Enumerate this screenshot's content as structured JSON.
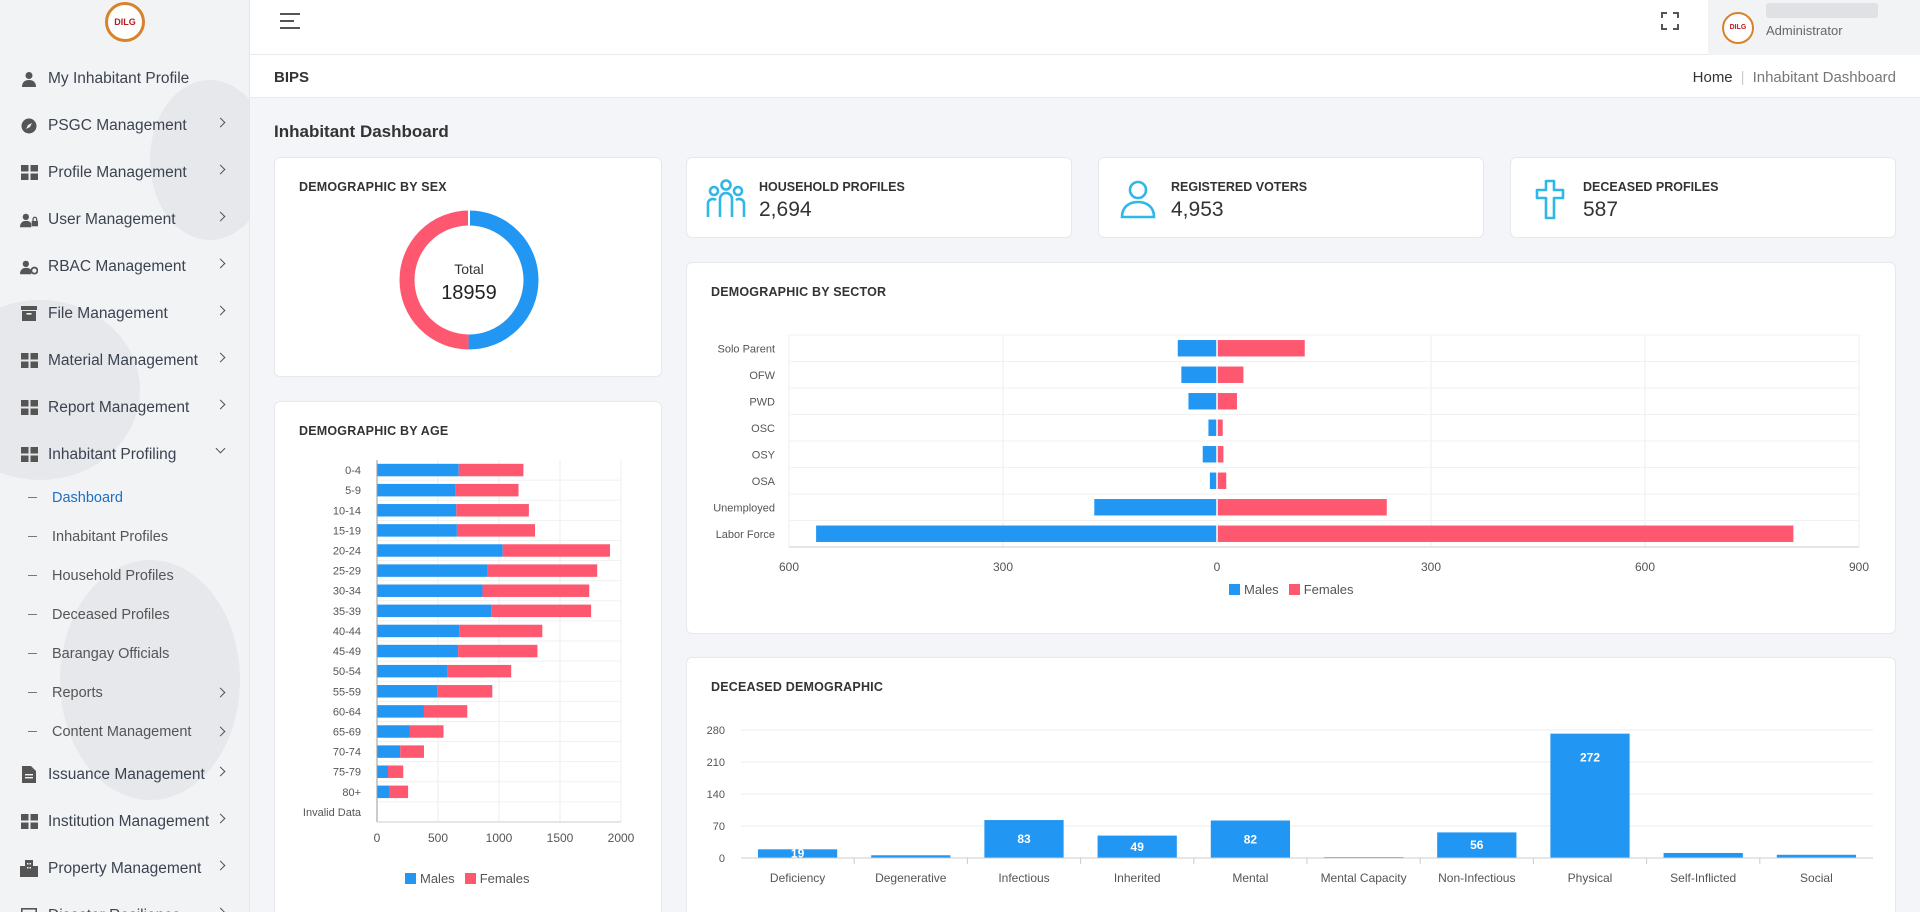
{
  "sidebar": {
    "logo_text": "DILG",
    "items": [
      {
        "label": "My Inhabitant Profile",
        "icon": "user-icon"
      },
      {
        "label": "PSGC Management",
        "icon": "compass-icon"
      },
      {
        "label": "Profile Management",
        "icon": "grid-icon"
      },
      {
        "label": "User Management",
        "icon": "user-lock-icon"
      },
      {
        "label": "RBAC Management",
        "icon": "user-gear-icon"
      },
      {
        "label": "File Management",
        "icon": "archive-icon"
      },
      {
        "label": "Material Management",
        "icon": "grid-icon"
      },
      {
        "label": "Report Management",
        "icon": "grid-icon"
      },
      {
        "label": "Inhabitant Profiling",
        "icon": "grid-icon"
      }
    ],
    "sub_items": [
      {
        "label": "Dashboard"
      },
      {
        "label": "Inhabitant Profiles"
      },
      {
        "label": "Household Profiles"
      },
      {
        "label": "Deceased Profiles"
      },
      {
        "label": "Barangay Officials"
      },
      {
        "label": "Reports"
      },
      {
        "label": "Content Management"
      }
    ],
    "items_after": [
      {
        "label": "Issuance Management",
        "icon": "document-icon"
      },
      {
        "label": "Institution Management",
        "icon": "grid-icon"
      },
      {
        "label": "Property Management",
        "icon": "building-icon"
      },
      {
        "label": "Disaster Resilience",
        "icon": "plus-box-icon"
      }
    ]
  },
  "header": {
    "user_role": "Administrator",
    "avatar_text": "DILG"
  },
  "breadcrumb": {
    "brand": "BIPS",
    "home": "Home",
    "current": "Inhabitant Dashboard"
  },
  "page_title": "Inhabitant Dashboard",
  "stats": {
    "household": {
      "label": "HOUSEHOLD PROFILES",
      "value": "2,694"
    },
    "voters": {
      "label": "REGISTERED VOTERS",
      "value": "4,953"
    },
    "deceased": {
      "label": "DECEASED PROFILES",
      "value": "587"
    }
  },
  "colors": {
    "males": "#2196f3",
    "females": "#fe5870",
    "accent": "#1e6fc4"
  },
  "cards": {
    "sex_title": "DEMOGRAPHIC BY SEX",
    "age_title": "DEMOGRAPHIC BY AGE",
    "sector_title": "DEMOGRAPHIC BY SECTOR",
    "deceased_title": "DECEASED DEMOGRAPHIC"
  },
  "legend": {
    "males": "Males",
    "females": "Females"
  },
  "chart_data": [
    {
      "type": "pie",
      "title": "DEMOGRAPHIC BY SEX",
      "center_label": "Total",
      "center_value": "18959",
      "total": 18959,
      "slices": [
        {
          "name": "Males",
          "value": 9500
        },
        {
          "name": "Females",
          "value": 9459
        }
      ]
    },
    {
      "type": "bar",
      "orientation": "horizontal",
      "stacked": true,
      "title": "DEMOGRAPHIC BY AGE",
      "categories": [
        "0-4",
        "5-9",
        "10-14",
        "15-19",
        "20-24",
        "25-29",
        "30-34",
        "35-39",
        "40-44",
        "45-49",
        "50-54",
        "55-59",
        "60-64",
        "65-69",
        "70-74",
        "75-79",
        "80+",
        "Invalid Data"
      ],
      "series": [
        {
          "name": "Males",
          "values": [
            670,
            645,
            650,
            655,
            1030,
            905,
            865,
            935,
            675,
            665,
            580,
            495,
            385,
            270,
            190,
            90,
            105,
            0
          ]
        },
        {
          "name": "Females",
          "values": [
            530,
            515,
            595,
            640,
            880,
            900,
            875,
            820,
            680,
            650,
            520,
            450,
            355,
            275,
            195,
            125,
            150,
            0
          ]
        }
      ],
      "xlim": [
        0,
        2000
      ],
      "xticks": [
        "0",
        "500",
        "1000",
        "1500",
        "2000"
      ],
      "legend": "bottom"
    },
    {
      "type": "bar",
      "orientation": "horizontal",
      "diverging": true,
      "title": "DEMOGRAPHIC BY SECTOR",
      "categories": [
        "Solo Parent",
        "OFW",
        "PWD",
        "OSC",
        "OSY",
        "OSA",
        "Unemployed",
        "Labor Force"
      ],
      "series": [
        {
          "name": "Males",
          "values": [
            55,
            50,
            40,
            12,
            20,
            10,
            172,
            562
          ]
        },
        {
          "name": "Females",
          "values": [
            123,
            37,
            28,
            8,
            9,
            13,
            238,
            808
          ]
        }
      ],
      "xlim": [
        -600,
        900
      ],
      "xticks": [
        "600",
        "300",
        "0",
        "300",
        "600",
        "900"
      ],
      "legend": "bottom"
    },
    {
      "type": "bar",
      "title": "DECEASED DEMOGRAPHIC",
      "categories": [
        "Deficiency",
        "Degenerative",
        "Infectious",
        "Inherited",
        "Mental",
        "Mental Capacity",
        "Non-Infectious",
        "Physical",
        "Self-Inflicted",
        "Social"
      ],
      "values": [
        19,
        6,
        83,
        49,
        82,
        2,
        56,
        272,
        11,
        7
      ],
      "labels": [
        "19",
        "",
        "83",
        "49",
        "82",
        "",
        "56",
        "272",
        "",
        ""
      ],
      "ylim": [
        0,
        280
      ],
      "yticks": [
        "0",
        "70",
        "140",
        "210",
        "280"
      ]
    }
  ]
}
